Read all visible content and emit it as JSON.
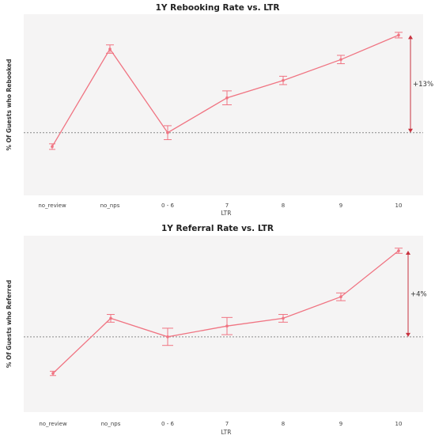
{
  "chart_data": [
    {
      "type": "line",
      "title": "1Y Rebooking Rate vs. LTR",
      "xlabel": "LTR",
      "ylabel": "% Of Guests who Rebooked",
      "categories": [
        "no_review",
        "no_nps",
        "0 - 6",
        "7",
        "8",
        "9",
        "10"
      ],
      "series": [
        {
          "values": [
            -2,
            12,
            0,
            5,
            7.5,
            10.5,
            14
          ],
          "error": [
            0.4,
            0.6,
            1.0,
            1.0,
            0.6,
            0.6,
            0.4
          ]
        }
      ],
      "baseline": 0,
      "ylim": [
        -9,
        17
      ],
      "grid": false,
      "annotation": {
        "text": "+13%",
        "from": 0,
        "to": 14
      },
      "colors": {
        "line": "#f07482",
        "annotation": "#c8323f",
        "baseline": "#8a8a8a",
        "background": "#f5f4f4"
      }
    },
    {
      "type": "line",
      "title": "1Y Referral Rate vs. LTR",
      "xlabel": "LTR",
      "ylabel": "% Of Guests who Referred",
      "categories": [
        "no_review",
        "no_nps",
        "0 - 6",
        "7",
        "8",
        "9",
        "10"
      ],
      "series": [
        {
          "values": [
            -1.7,
            0.86,
            0,
            0.5,
            0.86,
            1.86,
            4
          ],
          "error": [
            0.1,
            0.18,
            0.4,
            0.4,
            0.18,
            0.18,
            0.12
          ]
        }
      ],
      "baseline": 0,
      "ylim": [
        -3.5,
        4.7
      ],
      "grid": false,
      "annotation": {
        "text": "+4%",
        "from": 0,
        "to": 4
      },
      "colors": {
        "line": "#f07482",
        "annotation": "#c8323f",
        "baseline": "#8a8a8a",
        "background": "#f5f4f4"
      }
    }
  ]
}
